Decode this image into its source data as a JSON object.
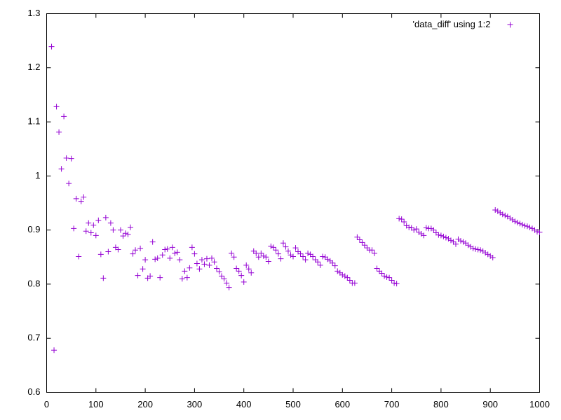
{
  "chart_data": {
    "type": "scatter",
    "legend": "top-right",
    "series": [
      {
        "name": "'data_diff' using 1:2",
        "color": "#9400d3",
        "x": [
          10,
          15,
          20,
          25,
          30,
          35,
          40,
          45,
          50,
          55,
          60,
          65,
          70,
          75,
          80,
          85,
          90,
          95,
          100,
          105,
          110,
          115,
          120,
          125,
          130,
          135,
          140,
          145,
          150,
          155,
          160,
          165,
          170,
          175,
          180,
          185,
          190,
          195,
          200,
          205,
          210,
          215,
          220,
          225,
          230,
          235,
          240,
          245,
          250,
          255,
          260,
          265,
          270,
          275,
          280,
          285,
          290,
          295,
          300,
          305,
          310,
          315,
          320,
          325,
          330,
          335,
          340,
          345,
          350,
          355,
          360,
          365,
          370,
          375,
          380,
          385,
          390,
          395,
          400,
          405,
          410,
          415,
          420,
          425,
          430,
          435,
          440,
          445,
          450,
          455,
          460,
          465,
          470,
          475,
          480,
          485,
          490,
          495,
          500,
          505,
          510,
          515,
          520,
          525,
          530,
          535,
          540,
          545,
          550,
          555,
          560,
          565,
          570,
          575,
          580,
          585,
          590,
          595,
          600,
          605,
          610,
          615,
          620,
          625,
          630,
          635,
          640,
          645,
          650,
          655,
          660,
          665,
          670,
          675,
          680,
          685,
          690,
          695,
          700,
          705,
          710,
          715,
          720,
          725,
          730,
          735,
          740,
          745,
          750,
          755,
          760,
          765,
          770,
          775,
          780,
          785,
          790,
          795,
          800,
          805,
          810,
          815,
          820,
          825,
          830,
          835,
          840,
          845,
          850,
          855,
          860,
          865,
          870,
          875,
          880,
          885,
          890,
          895,
          900,
          905,
          910,
          915,
          920,
          925,
          930,
          935,
          940,
          945,
          950,
          955,
          960,
          965,
          970,
          975,
          980,
          985,
          990,
          995,
          1000
        ],
        "values": [
          1.239,
          0.678,
          1.128,
          1.081,
          1.013,
          1.11,
          1.033,
          0.986,
          1.032,
          0.903,
          0.958,
          0.851,
          0.953,
          0.961,
          0.898,
          0.913,
          0.895,
          0.909,
          0.89,
          0.918,
          0.855,
          0.811,
          0.923,
          0.86,
          0.913,
          0.9,
          0.868,
          0.864,
          0.9,
          0.889,
          0.894,
          0.892,
          0.905,
          0.856,
          0.863,
          0.816,
          0.866,
          0.828,
          0.845,
          0.811,
          0.815,
          0.878,
          0.846,
          0.848,
          0.812,
          0.854,
          0.864,
          0.865,
          0.848,
          0.868,
          0.857,
          0.859,
          0.845,
          0.81,
          0.824,
          0.812,
          0.83,
          0.868,
          0.856,
          0.838,
          0.828,
          0.845,
          0.837,
          0.847,
          0.835,
          0.848,
          0.841,
          0.829,
          0.823,
          0.815,
          0.81,
          0.802,
          0.794,
          0.857,
          0.85,
          0.829,
          0.824,
          0.816,
          0.804,
          0.835,
          0.828,
          0.821,
          0.861,
          0.857,
          0.85,
          0.857,
          0.852,
          0.85,
          0.842,
          0.87,
          0.868,
          0.863,
          0.856,
          0.847,
          0.876,
          0.869,
          0.861,
          0.854,
          0.851,
          0.867,
          0.86,
          0.856,
          0.851,
          0.845,
          0.857,
          0.855,
          0.851,
          0.845,
          0.841,
          0.835,
          0.851,
          0.85,
          0.846,
          0.843,
          0.839,
          0.834,
          0.824,
          0.821,
          0.817,
          0.815,
          0.812,
          0.807,
          0.802,
          0.802,
          0.887,
          0.882,
          0.877,
          0.872,
          0.867,
          0.863,
          0.863,
          0.857,
          0.829,
          0.824,
          0.82,
          0.815,
          0.813,
          0.812,
          0.807,
          0.802,
          0.801,
          0.921,
          0.92,
          0.915,
          0.908,
          0.905,
          0.904,
          0.9,
          0.902,
          0.896,
          0.893,
          0.89,
          0.904,
          0.903,
          0.903,
          0.9,
          0.895,
          0.891,
          0.89,
          0.888,
          0.886,
          0.884,
          0.881,
          0.878,
          0.874,
          0.883,
          0.88,
          0.878,
          0.876,
          0.872,
          0.869,
          0.866,
          0.865,
          0.864,
          0.863,
          0.861,
          0.858,
          0.855,
          0.852,
          0.849,
          0.937,
          0.935,
          0.932,
          0.929,
          0.927,
          0.925,
          0.922,
          0.919,
          0.916,
          0.914,
          0.912,
          0.91,
          0.908,
          0.907,
          0.905,
          0.903,
          0.9,
          0.897,
          0.896
        ]
      }
    ],
    "xlim": [
      0,
      1000
    ],
    "xticks": [
      0,
      100,
      200,
      300,
      400,
      500,
      600,
      700,
      800,
      900,
      1000
    ],
    "ylim": [
      0.6,
      1.3
    ],
    "yticks": [
      0.6,
      0.7,
      0.8,
      0.9,
      1,
      1.1,
      1.2,
      1.3
    ]
  }
}
